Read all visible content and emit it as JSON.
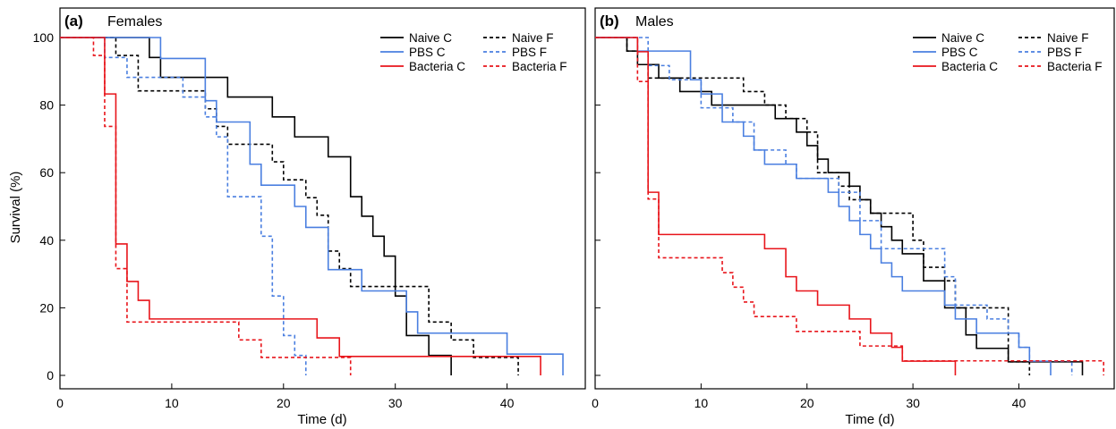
{
  "figure": {
    "ylabel": "Survival (%)",
    "legend_labels": [
      "Naive C",
      "Naive F",
      "PBS C",
      "PBS F",
      "Bacteria C",
      "Bacteria F"
    ]
  },
  "chart_data": [
    {
      "type": "line",
      "panel_letter": "(a)",
      "title": "Females",
      "xlabel": "Time (d)",
      "ylabel": "Survival (%)",
      "xlim": [
        0,
        47
      ],
      "ylim": [
        0,
        100
      ],
      "xticks": [
        0,
        10,
        20,
        30,
        40
      ],
      "yticks": [
        0,
        20,
        40,
        60,
        80,
        100
      ],
      "grid": false,
      "legend_position": "top-right",
      "series": [
        {
          "name": "Naive C",
          "color": "#000000",
          "dash": "solid",
          "steps": [
            [
              0,
              100
            ],
            [
              8,
              94.1
            ],
            [
              9,
              88.2
            ],
            [
              15,
              82.4
            ],
            [
              19,
              76.5
            ],
            [
              21,
              70.6
            ],
            [
              24,
              64.7
            ],
            [
              26,
              52.9
            ],
            [
              27,
              47.1
            ],
            [
              28,
              41.2
            ],
            [
              29,
              35.3
            ],
            [
              30,
              23.5
            ],
            [
              31,
              11.8
            ],
            [
              33,
              5.9
            ],
            [
              35,
              0
            ]
          ]
        },
        {
          "name": "Naive F",
          "color": "#000000",
          "dash": "dashed",
          "steps": [
            [
              0,
              100
            ],
            [
              5,
              94.7
            ],
            [
              7,
              84.2
            ],
            [
              13,
              78.9
            ],
            [
              14,
              73.7
            ],
            [
              15,
              68.4
            ],
            [
              19,
              63.2
            ],
            [
              20,
              57.9
            ],
            [
              22,
              52.6
            ],
            [
              23,
              47.4
            ],
            [
              24,
              36.8
            ],
            [
              25,
              31.6
            ],
            [
              26,
              26.3
            ],
            [
              33,
              15.8
            ],
            [
              35,
              10.5
            ],
            [
              37,
              5.3
            ],
            [
              41,
              0
            ]
          ]
        },
        {
          "name": "PBS C",
          "color": "#4A7FE0",
          "dash": "solid",
          "steps": [
            [
              0,
              100
            ],
            [
              9,
              93.8
            ],
            [
              13,
              81.3
            ],
            [
              14,
              75
            ],
            [
              17,
              62.5
            ],
            [
              18,
              56.3
            ],
            [
              21,
              50
            ],
            [
              22,
              43.8
            ],
            [
              24,
              31.3
            ],
            [
              27,
              25
            ],
            [
              31,
              18.8
            ],
            [
              32,
              12.5
            ],
            [
              40,
              6.3
            ],
            [
              45,
              0
            ]
          ]
        },
        {
          "name": "PBS F",
          "color": "#4A7FE0",
          "dash": "dashed",
          "steps": [
            [
              0,
              100
            ],
            [
              4,
              94.1
            ],
            [
              6,
              88.2
            ],
            [
              11,
              82.4
            ],
            [
              13,
              76.5
            ],
            [
              14,
              70.6
            ],
            [
              15,
              52.9
            ],
            [
              18,
              41.2
            ],
            [
              19,
              23.5
            ],
            [
              20,
              11.8
            ],
            [
              21,
              5.9
            ],
            [
              22,
              0
            ]
          ]
        },
        {
          "name": "Bacteria C",
          "color": "#E8151B",
          "dash": "solid",
          "steps": [
            [
              0,
              100
            ],
            [
              4,
              83.3
            ],
            [
              5,
              38.9
            ],
            [
              6,
              27.8
            ],
            [
              7,
              22.2
            ],
            [
              8,
              16.7
            ],
            [
              23,
              11.1
            ],
            [
              25,
              5.6
            ],
            [
              43,
              0
            ]
          ]
        },
        {
          "name": "Bacteria F",
          "color": "#E8151B",
          "dash": "dashed",
          "steps": [
            [
              0,
              100
            ],
            [
              3,
              94.7
            ],
            [
              4,
              73.7
            ],
            [
              5,
              31.6
            ],
            [
              6,
              15.8
            ],
            [
              16,
              10.5
            ],
            [
              18,
              5.3
            ],
            [
              26,
              0
            ]
          ]
        }
      ]
    },
    {
      "type": "line",
      "panel_letter": "(b)",
      "title": "Males",
      "xlabel": "Time (d)",
      "ylabel": "",
      "xlim": [
        0,
        49
      ],
      "ylim": [
        0,
        100
      ],
      "xticks": [
        0,
        10,
        20,
        30,
        40
      ],
      "yticks": [
        0,
        20,
        40,
        60,
        80,
        100
      ],
      "grid": false,
      "legend_position": "top-right",
      "series": [
        {
          "name": "Naive C",
          "color": "#000000",
          "dash": "solid",
          "steps": [
            [
              0,
              100
            ],
            [
              3,
              96
            ],
            [
              4,
              92
            ],
            [
              6,
              88
            ],
            [
              8,
              84
            ],
            [
              11,
              80
            ],
            [
              17,
              76
            ],
            [
              19,
              72
            ],
            [
              20,
              68
            ],
            [
              21,
              64
            ],
            [
              22,
              60
            ],
            [
              24,
              56
            ],
            [
              25,
              52
            ],
            [
              26,
              48
            ],
            [
              27,
              44
            ],
            [
              28,
              40
            ],
            [
              29,
              36
            ],
            [
              31,
              28
            ],
            [
              33,
              20
            ],
            [
              35,
              12
            ],
            [
              36,
              8
            ],
            [
              39,
              4
            ],
            [
              46,
              0
            ]
          ]
        },
        {
          "name": "Naive F",
          "color": "#000000",
          "dash": "dashed",
          "steps": [
            [
              0,
              100
            ],
            [
              3,
              96
            ],
            [
              4,
              92
            ],
            [
              5,
              88
            ],
            [
              14,
              84
            ],
            [
              16,
              80
            ],
            [
              18,
              76
            ],
            [
              20,
              72
            ],
            [
              21,
              60
            ],
            [
              23,
              56
            ],
            [
              24,
              52
            ],
            [
              26,
              48
            ],
            [
              30,
              40
            ],
            [
              31,
              32
            ],
            [
              33,
              28
            ],
            [
              34,
              20
            ],
            [
              39,
              4
            ],
            [
              41,
              0
            ]
          ]
        },
        {
          "name": "PBS C",
          "color": "#4A7FE0",
          "dash": "solid",
          "steps": [
            [
              0,
              100
            ],
            [
              4,
              96
            ],
            [
              9,
              87.5
            ],
            [
              10,
              83.3
            ],
            [
              12,
              75
            ],
            [
              14,
              70.8
            ],
            [
              15,
              66.7
            ],
            [
              16,
              62.5
            ],
            [
              19,
              58.3
            ],
            [
              22,
              54.2
            ],
            [
              23,
              50
            ],
            [
              24,
              45.8
            ],
            [
              25,
              41.7
            ],
            [
              26,
              37.5
            ],
            [
              27,
              33.3
            ],
            [
              28,
              29.2
            ],
            [
              29,
              25
            ],
            [
              33,
              20.8
            ],
            [
              34,
              16.7
            ],
            [
              36,
              12.5
            ],
            [
              40,
              8.3
            ],
            [
              41,
              4.2
            ],
            [
              43,
              0
            ]
          ]
        },
        {
          "name": "PBS F",
          "color": "#4A7FE0",
          "dash": "dashed",
          "steps": [
            [
              0,
              100
            ],
            [
              5,
              91.7
            ],
            [
              7,
              87.5
            ],
            [
              10,
              79.2
            ],
            [
              13,
              75
            ],
            [
              15,
              66.7
            ],
            [
              18,
              62.5
            ],
            [
              19,
              58.3
            ],
            [
              23,
              54.2
            ],
            [
              25,
              45.8
            ],
            [
              27,
              37.5
            ],
            [
              33,
              29.2
            ],
            [
              34,
              20.8
            ],
            [
              37,
              16.7
            ],
            [
              39,
              12.5
            ],
            [
              40,
              8.3
            ],
            [
              41,
              4.2
            ],
            [
              45,
              0
            ]
          ]
        },
        {
          "name": "Bacteria C",
          "color": "#E8151B",
          "dash": "solid",
          "steps": [
            [
              0,
              100
            ],
            [
              4,
              95.8
            ],
            [
              5,
              54.2
            ],
            [
              6,
              41.7
            ],
            [
              16,
              37.5
            ],
            [
              18,
              29.2
            ],
            [
              19,
              25
            ],
            [
              21,
              20.8
            ],
            [
              24,
              16.7
            ],
            [
              26,
              12.5
            ],
            [
              28,
              8.3
            ],
            [
              29,
              4.2
            ],
            [
              34,
              0
            ]
          ]
        },
        {
          "name": "Bacteria F",
          "color": "#E8151B",
          "dash": "dashed",
          "steps": [
            [
              0,
              100
            ],
            [
              4,
              87
            ],
            [
              5,
              52.2
            ],
            [
              6,
              34.8
            ],
            [
              12,
              30.4
            ],
            [
              13,
              26.1
            ],
            [
              14,
              21.7
            ],
            [
              15,
              17.4
            ],
            [
              19,
              13
            ],
            [
              25,
              8.7
            ],
            [
              29,
              4.3
            ],
            [
              48,
              0
            ]
          ]
        }
      ]
    }
  ]
}
